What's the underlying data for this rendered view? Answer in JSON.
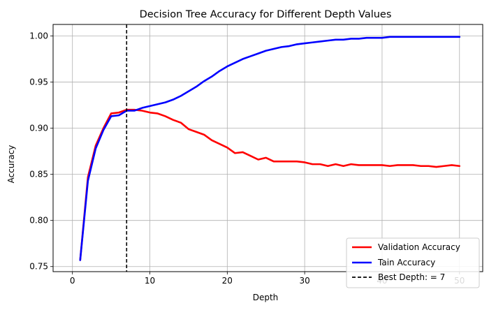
{
  "chart_data": {
    "type": "line",
    "title": "Decision Tree Accuracy for Different Depth Values",
    "xlabel": "Depth",
    "ylabel": "Accuracy",
    "xlim": [
      -2.5,
      53
    ],
    "ylim": [
      0.7445,
      1.0125
    ],
    "xticks": [
      0,
      10,
      20,
      30,
      40,
      50
    ],
    "yticks": [
      0.75,
      0.8,
      0.85,
      0.9,
      0.95,
      1.0
    ],
    "ytick_labels": [
      "0.75",
      "0.80",
      "0.85",
      "0.90",
      "0.95",
      "1.00"
    ],
    "xtick_labels": [
      "0",
      "10",
      "20",
      "30",
      "40",
      "50"
    ],
    "grid": true,
    "legend_position": "lower-right",
    "x": [
      1,
      2,
      3,
      4,
      5,
      6,
      7,
      8,
      9,
      10,
      11,
      12,
      13,
      14,
      15,
      16,
      17,
      18,
      19,
      20,
      21,
      22,
      23,
      24,
      25,
      26,
      27,
      28,
      29,
      30,
      31,
      32,
      33,
      34,
      35,
      36,
      37,
      38,
      39,
      40,
      41,
      42,
      43,
      44,
      45,
      46,
      47,
      48,
      49,
      50
    ],
    "series": [
      {
        "name": "Validation Accuracy",
        "color": "#ff0000",
        "style": "solid",
        "values": [
          0.757,
          0.847,
          0.881,
          0.9,
          0.916,
          0.917,
          0.92,
          0.92,
          0.919,
          0.917,
          0.916,
          0.913,
          0.909,
          0.906,
          0.899,
          0.896,
          0.893,
          0.887,
          0.883,
          0.879,
          0.873,
          0.874,
          0.87,
          0.866,
          0.868,
          0.864,
          0.864,
          0.864,
          0.864,
          0.863,
          0.861,
          0.861,
          0.859,
          0.861,
          0.859,
          0.861,
          0.86,
          0.86,
          0.86,
          0.86,
          0.859,
          0.86,
          0.86,
          0.86,
          0.859,
          0.859,
          0.858,
          0.859,
          0.86,
          0.859
        ]
      },
      {
        "name": "Tain Accuracy",
        "color": "#0000ff",
        "style": "solid",
        "values": [
          0.757,
          0.843,
          0.878,
          0.898,
          0.913,
          0.914,
          0.919,
          0.919,
          0.922,
          0.924,
          0.926,
          0.928,
          0.931,
          0.935,
          0.94,
          0.945,
          0.951,
          0.956,
          0.962,
          0.967,
          0.971,
          0.975,
          0.978,
          0.981,
          0.984,
          0.986,
          0.988,
          0.989,
          0.991,
          0.992,
          0.993,
          0.994,
          0.995,
          0.996,
          0.996,
          0.997,
          0.997,
          0.998,
          0.998,
          0.998,
          0.999,
          0.999,
          0.999,
          0.999,
          0.999,
          0.999,
          0.999,
          0.999,
          0.999,
          0.999
        ]
      }
    ],
    "vline": {
      "name": "Best Depth: = 7",
      "x": 7,
      "color": "#000000",
      "style": "dashed"
    }
  }
}
